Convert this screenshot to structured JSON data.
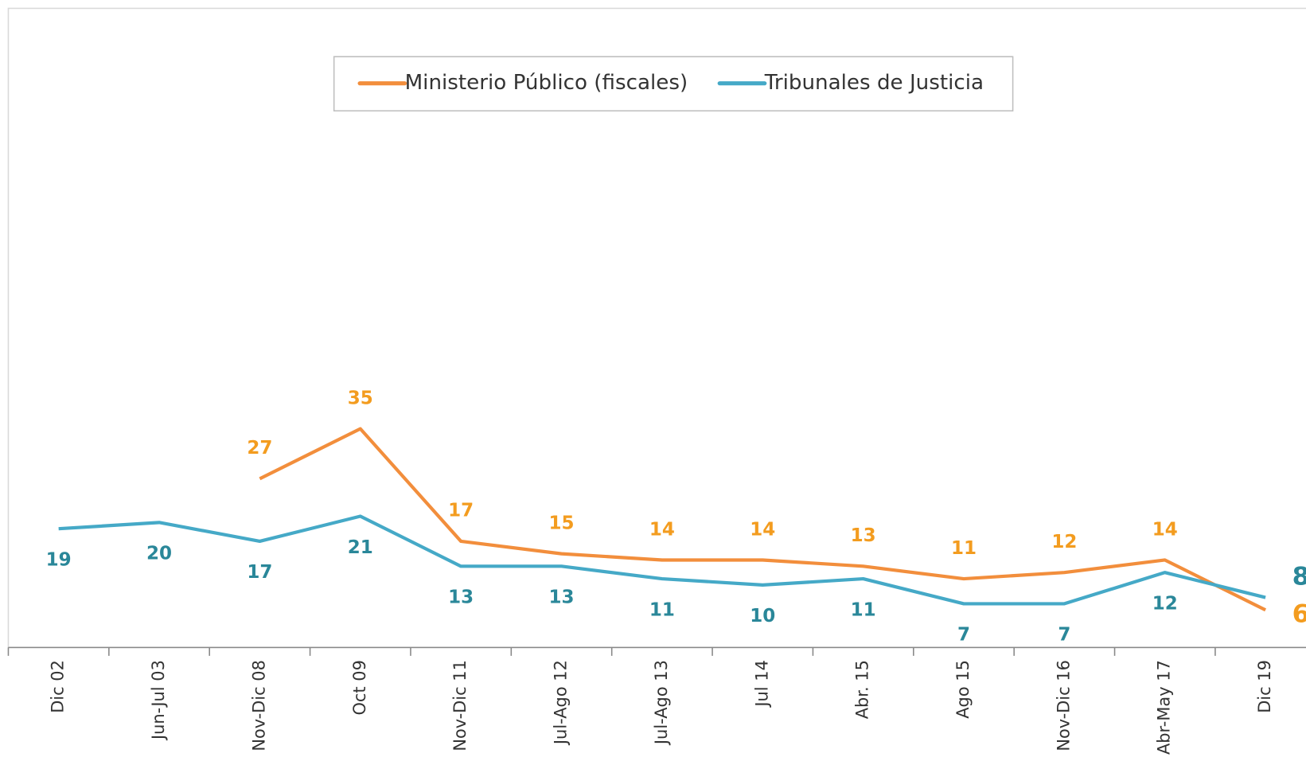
{
  "chart_data": {
    "type": "line",
    "categories": [
      "Dic 02",
      "Jun-Jul 03",
      "Nov-Dic 08",
      "Oct 09",
      "Nov-Dic 11",
      "Jul-Ago 12",
      "Jul-Ago 13",
      "Jul 14",
      "Abr. 15",
      "Ago 15",
      "Nov-Dic 16",
      "Abr-May 17",
      "Dic 19"
    ],
    "series": [
      {
        "name": "Ministerio Público (fiscales)",
        "color": "#f28e3c",
        "label_color": "#f39c1f",
        "values": [
          null,
          null,
          27,
          35,
          17,
          15,
          14,
          14,
          13,
          11,
          12,
          14,
          6
        ]
      },
      {
        "name": "Tribunales de Justicia",
        "color": "#45a9c7",
        "label_color": "#2a8799",
        "values": [
          19,
          20,
          17,
          21,
          13,
          13,
          11,
          10,
          11,
          7,
          7,
          12,
          8
        ]
      }
    ],
    "ylim": [
      0,
      100
    ],
    "legend": "top"
  }
}
